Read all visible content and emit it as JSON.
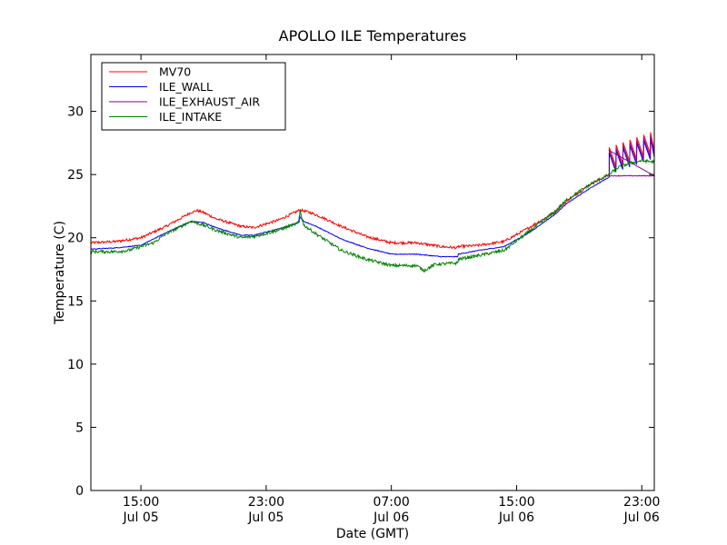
{
  "chart_data": {
    "type": "line",
    "title": "APOLLO ILE Temperatures",
    "xlabel": "Date (GMT)",
    "ylabel": "Temperature (C)",
    "ylim": [
      0,
      34.5
    ],
    "xlim_hours": [
      0,
      45
    ],
    "x_unit": "hours since Jul 05 11:00 GMT",
    "yticks": [
      0,
      5,
      10,
      15,
      20,
      25,
      30
    ],
    "xticks": [
      {
        "x": 4,
        "time": "15:00",
        "date": "Jul 05"
      },
      {
        "x": 14,
        "time": "23:00",
        "date": "Jul 05"
      },
      {
        "x": 24,
        "time": "07:00",
        "date": "Jul 06"
      },
      {
        "x": 34,
        "time": "15:00",
        "date": "Jul 06"
      },
      {
        "x": 44,
        "time": "23:00",
        "date": "Jul 06"
      }
    ],
    "legend_position": "top-left",
    "series": [
      {
        "name": "MV70",
        "color": "#ff0000",
        "noise": 0.1,
        "points": [
          [
            0,
            19.6
          ],
          [
            2,
            19.7
          ],
          [
            4,
            20.0
          ],
          [
            6,
            20.9
          ],
          [
            8,
            22.0
          ],
          [
            8.5,
            22.15
          ],
          [
            9,
            22.0
          ],
          [
            10,
            21.5
          ],
          [
            12,
            20.9
          ],
          [
            13,
            20.8
          ],
          [
            15,
            21.4
          ],
          [
            16.7,
            22.2
          ],
          [
            17.5,
            22.0
          ],
          [
            18.5,
            21.6
          ],
          [
            20,
            20.9
          ],
          [
            22,
            20.1
          ],
          [
            24,
            19.6
          ],
          [
            26,
            19.6
          ],
          [
            28,
            19.3
          ],
          [
            29.3,
            19.2
          ],
          [
            29.35,
            19.3
          ],
          [
            31,
            19.4
          ],
          [
            33,
            19.7
          ],
          [
            35,
            20.8
          ],
          [
            37,
            22.0
          ],
          [
            38,
            22.9
          ],
          [
            40,
            24.3
          ],
          [
            41.4,
            25.0
          ]
        ]
      },
      {
        "name": "ILE_WALL",
        "color": "#0000ff",
        "noise": 0.03,
        "points": [
          [
            0,
            19.1
          ],
          [
            2,
            19.2
          ],
          [
            4,
            19.4
          ],
          [
            6,
            20.4
          ],
          [
            8,
            21.3
          ],
          [
            9,
            21.2
          ],
          [
            10,
            20.8
          ],
          [
            12,
            20.2
          ],
          [
            13,
            20.2
          ],
          [
            15,
            20.7
          ],
          [
            16.6,
            21.2
          ],
          [
            16.65,
            21.7
          ],
          [
            17,
            21.3
          ],
          [
            18,
            20.9
          ],
          [
            20,
            19.9
          ],
          [
            22,
            19.2
          ],
          [
            24,
            18.7
          ],
          [
            26,
            18.7
          ],
          [
            28,
            18.5
          ],
          [
            29.3,
            18.5
          ],
          [
            29.35,
            18.7
          ],
          [
            31,
            19.0
          ],
          [
            33,
            19.3
          ],
          [
            35,
            20.4
          ],
          [
            37,
            21.8
          ],
          [
            38,
            22.7
          ],
          [
            40,
            24.0
          ],
          [
            41.4,
            24.8
          ]
        ]
      },
      {
        "name": "ILE_EXHAUST_AIR",
        "color": "#8b008b",
        "noise": 0.03,
        "points": [
          [
            41.4,
            24.9
          ],
          [
            45,
            24.9
          ]
        ]
      },
      {
        "name": "ILE_INTAKE",
        "color": "#008000",
        "noise": 0.12,
        "points": [
          [
            0,
            18.9
          ],
          [
            2,
            18.9
          ],
          [
            3,
            19.0
          ],
          [
            5,
            19.6
          ],
          [
            6,
            20.3
          ],
          [
            8,
            21.3
          ],
          [
            9,
            21.0
          ],
          [
            10,
            20.6
          ],
          [
            12,
            20.0
          ],
          [
            13,
            20.1
          ],
          [
            15,
            20.6
          ],
          [
            16.65,
            21.2
          ],
          [
            16.7,
            22.2
          ],
          [
            17,
            21.0
          ],
          [
            18,
            20.3
          ],
          [
            20,
            19.0
          ],
          [
            22,
            18.3
          ],
          [
            24,
            17.8
          ],
          [
            25,
            17.8
          ],
          [
            26,
            17.8
          ],
          [
            26.6,
            17.4
          ],
          [
            27.5,
            17.9
          ],
          [
            29.3,
            18.0
          ],
          [
            29.35,
            18.3
          ],
          [
            31,
            18.6
          ],
          [
            33,
            19.0
          ],
          [
            35,
            20.5
          ],
          [
            37,
            22.0
          ],
          [
            38,
            23.0
          ],
          [
            40,
            24.3
          ],
          [
            41.4,
            25.0
          ],
          [
            42,
            25.5
          ],
          [
            43,
            25.9
          ],
          [
            44,
            26.1
          ],
          [
            45,
            26.0
          ]
        ]
      }
    ]
  }
}
